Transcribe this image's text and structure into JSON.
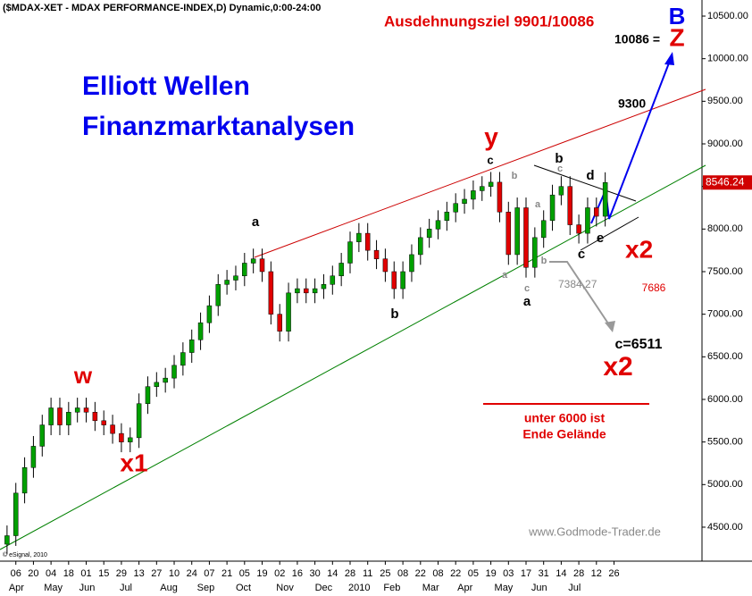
{
  "chart_data": {
    "type": "candlestick",
    "title": "($MDAX-XET - MDAX PERFORMANCE-INDEX,D) Dynamic,0:00-24:00",
    "up_color": "#00a000",
    "down_color": "#e00000",
    "ylim": [
      4164,
      10689
    ],
    "yticks": [
      {
        "value": 4500,
        "label": "4500.00"
      },
      {
        "value": 5000,
        "label": "5000.00"
      },
      {
        "value": 5500,
        "label": "5500.00"
      },
      {
        "value": 6000,
        "label": "6000.00"
      },
      {
        "value": 6500,
        "label": "6500.00"
      },
      {
        "value": 7000,
        "label": "7000.00"
      },
      {
        "value": 7500,
        "label": "7500.00"
      },
      {
        "value": 8000,
        "label": "8000.00"
      },
      {
        "value": 8500,
        "label": "8500.00"
      },
      {
        "value": 9000,
        "label": "9000.00"
      },
      {
        "value": 9500,
        "label": "9500.00"
      },
      {
        "value": 10000,
        "label": "10000.00"
      },
      {
        "value": 10500,
        "label": "10500.00"
      }
    ],
    "xlim": [
      -2,
      396.5
    ],
    "xticks": [
      {
        "value": 7,
        "label": "06"
      },
      {
        "value": 17,
        "label": "20"
      },
      {
        "value": 27,
        "label": "04"
      },
      {
        "value": 37,
        "label": "18"
      },
      {
        "value": 47,
        "label": "01"
      },
      {
        "value": 57,
        "label": "15"
      },
      {
        "value": 67,
        "label": "29"
      },
      {
        "value": 77,
        "label": "13"
      },
      {
        "value": 87,
        "label": "27"
      },
      {
        "value": 97,
        "label": "10"
      },
      {
        "value": 107,
        "label": "24"
      },
      {
        "value": 117,
        "label": "07"
      },
      {
        "value": 127,
        "label": "21"
      },
      {
        "value": 137,
        "label": "05"
      },
      {
        "value": 147,
        "label": "19"
      },
      {
        "value": 157,
        "label": "02"
      },
      {
        "value": 167,
        "label": "16"
      },
      {
        "value": 177,
        "label": "30"
      },
      {
        "value": 187,
        "label": "14"
      },
      {
        "value": 197,
        "label": "28"
      },
      {
        "value": 207,
        "label": "11"
      },
      {
        "value": 217,
        "label": "25"
      },
      {
        "value": 227,
        "label": "08"
      },
      {
        "value": 237,
        "label": "22"
      },
      {
        "value": 247,
        "label": "08"
      },
      {
        "value": 257,
        "label": "22"
      },
      {
        "value": 267,
        "label": "05"
      },
      {
        "value": 277,
        "label": "19"
      },
      {
        "value": 287,
        "label": "03"
      },
      {
        "value": 297,
        "label": "17"
      },
      {
        "value": 307,
        "label": "31"
      },
      {
        "value": 317,
        "label": "14"
      },
      {
        "value": 327,
        "label": "28"
      },
      {
        "value": 337,
        "label": "12"
      },
      {
        "value": 347,
        "label": "26"
      }
    ],
    "month_ticks": [
      {
        "value": 3,
        "label": "Apr"
      },
      {
        "value": 23,
        "label": "May"
      },
      {
        "value": 43,
        "label": "Jun"
      },
      {
        "value": 66,
        "label": "Jul"
      },
      {
        "value": 89,
        "label": "Aug"
      },
      {
        "value": 110,
        "label": "Sep"
      },
      {
        "value": 132,
        "label": "Oct"
      },
      {
        "value": 155,
        "label": "Nov"
      },
      {
        "value": 177,
        "label": "Dec"
      },
      {
        "value": 196,
        "label": "2010"
      },
      {
        "value": 216,
        "label": "Feb"
      },
      {
        "value": 238,
        "label": "Mar"
      },
      {
        "value": 258,
        "label": "Apr"
      },
      {
        "value": 279,
        "label": "May"
      },
      {
        "value": 300,
        "label": "Jun"
      },
      {
        "value": 321,
        "label": "Jul"
      }
    ],
    "x": [
      2,
      7,
      12,
      17,
      22,
      27,
      32,
      37,
      42,
      47,
      52,
      57,
      62,
      67,
      72,
      77,
      82,
      87,
      92,
      97,
      102,
      107,
      112,
      117,
      122,
      127,
      132,
      137,
      142,
      147,
      152,
      157,
      162,
      167,
      172,
      177,
      182,
      187,
      192,
      197,
      202,
      207,
      212,
      217,
      222,
      227,
      232,
      237,
      242,
      247,
      252,
      257,
      262,
      267,
      272,
      277,
      282,
      287,
      292,
      297,
      302,
      307,
      312,
      317,
      322,
      327,
      332,
      337,
      342
    ],
    "open": [
      4300,
      4400,
      4900,
      5200,
      5450,
      5700,
      5900,
      5700,
      5850,
      5900,
      5850,
      5750,
      5700,
      5600,
      5500,
      5550,
      5950,
      6150,
      6200,
      6250,
      6400,
      6550,
      6700,
      6900,
      7100,
      7350,
      7400,
      7450,
      7600,
      7650,
      7500,
      7000,
      6800,
      7250,
      7300,
      7250,
      7300,
      7350,
      7450,
      7600,
      7850,
      7950,
      7750,
      7650,
      7500,
      7300,
      7500,
      7700,
      7900,
      8000,
      8100,
      8200,
      8300,
      8350,
      8450,
      8500,
      8550,
      8200,
      7700,
      8250,
      7550,
      7900,
      8100,
      8400,
      8500,
      8050,
      7950,
      8250,
      8150
    ],
    "high": [
      4520,
      5020,
      5320,
      5570,
      5820,
      6020,
      6020,
      5970,
      6020,
      6020,
      5970,
      5870,
      5820,
      5720,
      5670,
      6070,
      6270,
      6320,
      6370,
      6520,
      6670,
      6820,
      7020,
      7220,
      7470,
      7520,
      7570,
      7720,
      7770,
      7770,
      7620,
      7120,
      7370,
      7420,
      7420,
      7420,
      7470,
      7570,
      7720,
      7970,
      8070,
      8070,
      7870,
      7770,
      7620,
      7620,
      7820,
      8020,
      8120,
      8220,
      8320,
      8420,
      8470,
      8570,
      8620,
      8670,
      8670,
      8320,
      8370,
      8370,
      8020,
      8220,
      8520,
      8620,
      8620,
      8170,
      8370,
      8370,
      8666.24
    ],
    "low": [
      4180,
      4280,
      4780,
      5080,
      5330,
      5580,
      5580,
      5580,
      5730,
      5730,
      5630,
      5580,
      5480,
      5380,
      5380,
      5430,
      5830,
      6030,
      6080,
      6130,
      6280,
      6430,
      6580,
      6780,
      6980,
      7230,
      7280,
      7330,
      7480,
      7380,
      6880,
      6680,
      6680,
      7130,
      7130,
      7130,
      7180,
      7230,
      7330,
      7480,
      7730,
      7630,
      7530,
      7380,
      7180,
      7180,
      7380,
      7580,
      7780,
      7880,
      7980,
      8080,
      8180,
      8230,
      8330,
      8380,
      8080,
      7580,
      7580,
      7430,
      7430,
      7780,
      7980,
      8280,
      7930,
      7830,
      7830,
      8030,
      8030
    ],
    "close": [
      4400,
      4900,
      5200,
      5450,
      5700,
      5900,
      5700,
      5850,
      5900,
      5850,
      5750,
      5700,
      5600,
      5500,
      5550,
      5950,
      6150,
      6200,
      6250,
      6400,
      6550,
      6700,
      6900,
      7100,
      7350,
      7400,
      7450,
      7600,
      7650,
      7500,
      7000,
      6800,
      7250,
      7300,
      7250,
      7300,
      7350,
      7450,
      7600,
      7850,
      7950,
      7750,
      7650,
      7500,
      7300,
      7500,
      7700,
      7900,
      8000,
      8100,
      8200,
      8300,
      8350,
      8450,
      8500,
      8550,
      8200,
      7700,
      8250,
      7550,
      7900,
      8100,
      8400,
      8500,
      8050,
      7950,
      8250,
      8150,
      8546.24
    ],
    "last_value": 8546.24,
    "annotations": [
      {
        "text": "Elliott Wellen"
      },
      {
        "text": "Finanzmarktanalysen"
      },
      {
        "text": "Ausdehnungsziel 9901/10086"
      },
      {
        "text": "B"
      },
      {
        "text": "10086 ="
      },
      {
        "text": "Z"
      },
      {
        "text": "9300"
      },
      {
        "text": "y"
      },
      {
        "text": "c"
      },
      {
        "text": "b"
      },
      {
        "text": "c"
      },
      {
        "text": "d"
      },
      {
        "text": "b"
      },
      {
        "text": "a"
      },
      {
        "text": "b"
      },
      {
        "text": "a"
      },
      {
        "text": "c"
      },
      {
        "text": "a"
      },
      {
        "text": "c"
      },
      {
        "text": "e"
      },
      {
        "text": "x2"
      },
      {
        "text": "7384,27"
      },
      {
        "text": "7686"
      },
      {
        "text": "c=6511"
      },
      {
        "text": "x2"
      },
      {
        "text": "unter 6000 ist"
      },
      {
        "text": "Ende Gelände"
      },
      {
        "text": "w"
      },
      {
        "text": "x1"
      },
      {
        "text": "a"
      },
      {
        "text": "b"
      },
      {
        "text": "www.Godmode-Trader.de"
      },
      {
        "text": "© eSignal, 2010"
      }
    ]
  }
}
